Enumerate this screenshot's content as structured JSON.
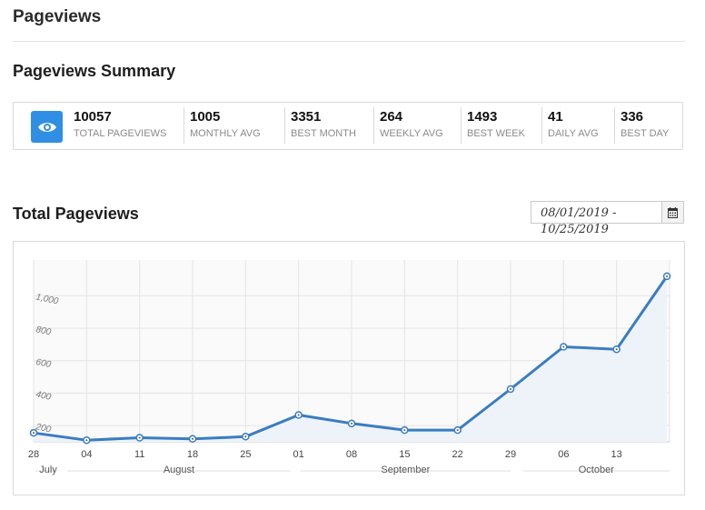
{
  "page": {
    "title": "Pageviews"
  },
  "summary": {
    "title": "Pageviews Summary",
    "icon": "eye-icon",
    "accent": "#2f8fe4",
    "stats": [
      {
        "value": "10057",
        "label": "TOTAL PAGEVIEWS"
      },
      {
        "value": "1005",
        "label": "MONTHLY AVG"
      },
      {
        "value": "3351",
        "label": "BEST MONTH"
      },
      {
        "value": "264",
        "label": "WEEKLY AVG"
      },
      {
        "value": "1493",
        "label": "BEST WEEK"
      },
      {
        "value": "41",
        "label": "DAILY AVG"
      },
      {
        "value": "336",
        "label": "BEST DAY"
      }
    ]
  },
  "total": {
    "title": "Total Pageviews",
    "date_range": "08/01/2019 - 10/25/2019",
    "calendar_icon": "calendar-icon"
  },
  "chart_data": {
    "type": "line",
    "title": "",
    "xlabel": "",
    "ylabel": "",
    "line_color": "#3a7dc1",
    "x_tick_labels": [
      "28",
      "04",
      "11",
      "18",
      "25",
      "01",
      "08",
      "15",
      "22",
      "29",
      "06",
      "13"
    ],
    "month_labels": [
      "July",
      "August",
      "September",
      "October"
    ],
    "y_tick_labels": [
      "200",
      "400",
      "600",
      "800",
      "1,000"
    ],
    "y_ticks": [
      200,
      400,
      600,
      800,
      1000
    ],
    "ylim": [
      100,
      1220
    ],
    "x_range": [
      0,
      12
    ],
    "grid": true,
    "series": [
      {
        "points": [
          {
            "x": 0,
            "y": 155
          },
          {
            "x": 1,
            "y": 110
          },
          {
            "x": 2,
            "y": 125
          },
          {
            "x": 3,
            "y": 118
          },
          {
            "x": 4,
            "y": 132
          },
          {
            "x": 5,
            "y": 265
          },
          {
            "x": 6,
            "y": 213
          },
          {
            "x": 7,
            "y": 172
          },
          {
            "x": 8,
            "y": 172
          },
          {
            "x": 9,
            "y": 425
          },
          {
            "x": 10,
            "y": 685
          },
          {
            "x": 11,
            "y": 670
          },
          {
            "x": 11.95,
            "y": 1120
          }
        ]
      }
    ]
  }
}
